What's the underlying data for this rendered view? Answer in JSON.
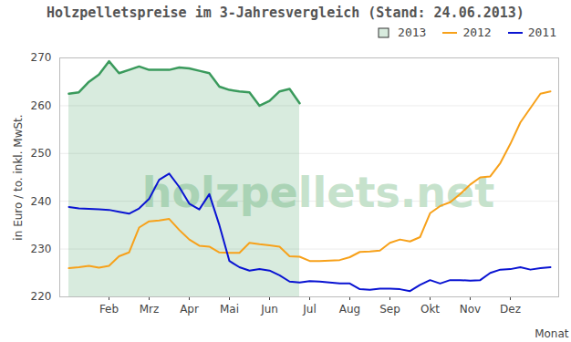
{
  "chart_data": {
    "type": "line",
    "title": "Holzpelletspreise im 3-Jahresvergleich (Stand: 24.06.2013)",
    "x_label": "Monat",
    "y_label": "in Euro / to. inkl. MwSt.",
    "annotations": [
      "holzpellets.net"
    ],
    "categories": [
      null,
      null,
      null,
      null,
      "Feb",
      null,
      null,
      null,
      "Mrz",
      null,
      null,
      null,
      "Apr",
      null,
      null,
      null,
      "Mai",
      null,
      null,
      null,
      "Jun",
      null,
      null,
      null,
      "Jul",
      null,
      null,
      null,
      "Aug",
      null,
      null,
      null,
      "Sep",
      null,
      null,
      null,
      "Okt",
      null,
      null,
      null,
      "Nov",
      null,
      null,
      null,
      "Dez",
      null,
      null,
      null,
      null
    ],
    "series": [
      {
        "name": "2013",
        "type": "area",
        "color": "#3a9a5c",
        "values": [
          262.5,
          262.8,
          265.0,
          266.5,
          269.3,
          266.8,
          267.5,
          268.2,
          267.5,
          267.5,
          267.5,
          268.0,
          267.8,
          267.3,
          266.8,
          264.0,
          263.3,
          263.0,
          262.8,
          260.0,
          261.0,
          263.0,
          263.5,
          260.5,
          null,
          null,
          null,
          null,
          null,
          null,
          null,
          null,
          null,
          null,
          null,
          null,
          null,
          null,
          null,
          null,
          null,
          null,
          null,
          null,
          null,
          null,
          null,
          null,
          null
        ]
      },
      {
        "name": "2012",
        "type": "line",
        "color": "#f7a11a",
        "values": [
          226.0,
          226.2,
          226.5,
          226.1,
          226.5,
          228.5,
          229.3,
          234.5,
          235.8,
          236.0,
          236.3,
          234.0,
          232.0,
          230.7,
          230.5,
          229.3,
          229.2,
          229.2,
          231.3,
          231.0,
          230.8,
          230.5,
          228.5,
          228.4,
          227.5,
          227.5,
          227.6,
          227.7,
          228.3,
          229.4,
          229.5,
          229.7,
          231.3,
          232.0,
          231.6,
          232.5,
          237.5,
          239.0,
          239.8,
          241.5,
          243.5,
          245.0,
          245.2,
          248.0,
          252.0,
          256.5,
          259.5,
          262.5,
          263.0
        ]
      },
      {
        "name": "2011",
        "type": "line",
        "color": "#0a14d2",
        "values": [
          238.8,
          238.5,
          238.4,
          238.3,
          238.2,
          237.8,
          237.4,
          238.5,
          240.5,
          244.5,
          245.8,
          243.0,
          239.5,
          238.3,
          241.5,
          235.0,
          227.5,
          226.2,
          225.5,
          225.8,
          225.5,
          224.5,
          223.2,
          223.0,
          223.3,
          223.2,
          223.0,
          222.8,
          222.8,
          221.6,
          221.5,
          221.7,
          221.7,
          221.6,
          221.2,
          222.5,
          223.5,
          222.8,
          223.5,
          223.5,
          223.4,
          223.5,
          225.0,
          225.7,
          225.8,
          226.2,
          225.7,
          226.0,
          226.2
        ]
      }
    ],
    "ylim": [
      220,
      270
    ],
    "yticks": [
      220,
      230,
      240,
      250,
      260,
      270
    ],
    "grid": true,
    "legend": "top-right"
  }
}
